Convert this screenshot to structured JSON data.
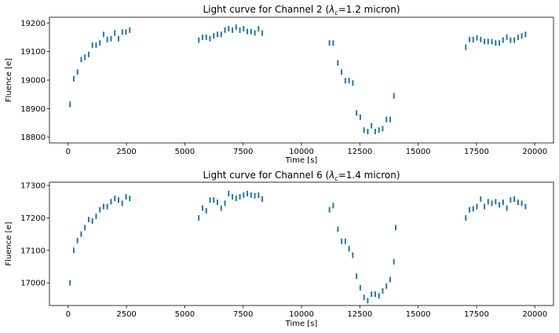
{
  "chart_data": [
    {
      "type": "scatter",
      "title_prefix": "Light curve for Channel 2 (",
      "title_symbol": "λ",
      "title_sub": "c",
      "title_suffix": "=1.2 micron)",
      "xlabel": "Time [s]",
      "ylabel": "Fluence [e]",
      "xlim": [
        -800,
        20800
      ],
      "ylim": [
        18780,
        19220
      ],
      "xticks": [
        0,
        2500,
        5000,
        7500,
        10000,
        12500,
        15000,
        17500,
        20000
      ],
      "yticks": [
        18800,
        18900,
        19000,
        19100,
        19200
      ],
      "grid": false,
      "marker_color": "#1f77b4",
      "series": [
        {
          "x": [
            80,
            240,
            400,
            560,
            720,
            880,
            1040,
            1200,
            1360,
            1520,
            1680,
            1840,
            2000,
            2160,
            2320,
            2480,
            2640,
            5600,
            5760,
            5920,
            6080,
            6240,
            6400,
            6560,
            6720,
            6880,
            7040,
            7200,
            7360,
            7520,
            7680,
            7840,
            8000,
            8160,
            8320,
            11200,
            11360,
            11560,
            11720,
            11880,
            12040,
            12200,
            12360,
            12520,
            12680,
            12840,
            13000,
            13160,
            13320,
            13480,
            13640,
            13800,
            13960,
            17040,
            17200,
            17360,
            17520,
            17680,
            17840,
            18000,
            18160,
            18320,
            18480,
            18640,
            18800,
            18960,
            19120,
            19280,
            19440,
            19600
          ],
          "y": [
            18915,
            19005,
            19028,
            19072,
            19080,
            19090,
            19122,
            19122,
            19130,
            19160,
            19142,
            19145,
            19165,
            19145,
            19168,
            19168,
            19175,
            19140,
            19150,
            19150,
            19145,
            19155,
            19160,
            19160,
            19175,
            19180,
            19175,
            19185,
            19175,
            19180,
            19170,
            19170,
            19165,
            19180,
            19165,
            19130,
            19130,
            19060,
            19028,
            18998,
            18998,
            18990,
            18885,
            18870,
            18825,
            18820,
            18840,
            18820,
            18825,
            18830,
            18862,
            18862,
            18945,
            19115,
            19142,
            19142,
            19148,
            19142,
            19135,
            19135,
            19135,
            19130,
            19130,
            19140,
            19150,
            19140,
            19140,
            19150,
            19155,
            19160
          ]
        }
      ]
    },
    {
      "type": "scatter",
      "title_prefix": "Light curve for Channel 6 (",
      "title_symbol": "λ",
      "title_sub": "c",
      "title_suffix": "=1.4 micron)",
      "xlabel": "Time [s]",
      "ylabel": "Fluence [e]",
      "xlim": [
        -800,
        20800
      ],
      "ylim": [
        16930,
        17310
      ],
      "xticks": [
        0,
        2500,
        5000,
        7500,
        10000,
        12500,
        15000,
        17500,
        20000
      ],
      "yticks": [
        17000,
        17100,
        17200,
        17300
      ],
      "grid": false,
      "marker_color": "#1f77b4",
      "series": [
        {
          "x": [
            80,
            240,
            400,
            560,
            720,
            880,
            1040,
            1200,
            1360,
            1520,
            1680,
            1840,
            2000,
            2160,
            2320,
            2480,
            2640,
            5600,
            5760,
            5920,
            6080,
            6240,
            6400,
            6560,
            6720,
            6880,
            7040,
            7200,
            7360,
            7520,
            7680,
            7840,
            8000,
            8160,
            8320,
            11200,
            11360,
            11560,
            11720,
            11880,
            12040,
            12200,
            12360,
            12520,
            12680,
            12840,
            13000,
            13160,
            13320,
            13480,
            13640,
            13800,
            13960,
            14040,
            17040,
            17200,
            17360,
            17520,
            17680,
            17840,
            18000,
            18160,
            18320,
            18480,
            18640,
            18800,
            18960,
            19120,
            19280,
            19440,
            19600
          ],
          "y": [
            17000,
            17100,
            17130,
            17150,
            17170,
            17195,
            17190,
            17205,
            17225,
            17235,
            17235,
            17250,
            17260,
            17255,
            17245,
            17265,
            17260,
            17200,
            17230,
            17222,
            17255,
            17255,
            17248,
            17230,
            17245,
            17275,
            17265,
            17260,
            17265,
            17270,
            17275,
            17270,
            17268,
            17270,
            17258,
            17225,
            17238,
            17165,
            17128,
            17128,
            17105,
            17085,
            17020,
            16985,
            16955,
            16945,
            16965,
            16965,
            16960,
            16975,
            16990,
            17010,
            17065,
            17170,
            17200,
            17225,
            17228,
            17235,
            17258,
            17235,
            17250,
            17245,
            17250,
            17240,
            17248,
            17230,
            17255,
            17258,
            17248,
            17245,
            17235
          ]
        }
      ]
    }
  ]
}
